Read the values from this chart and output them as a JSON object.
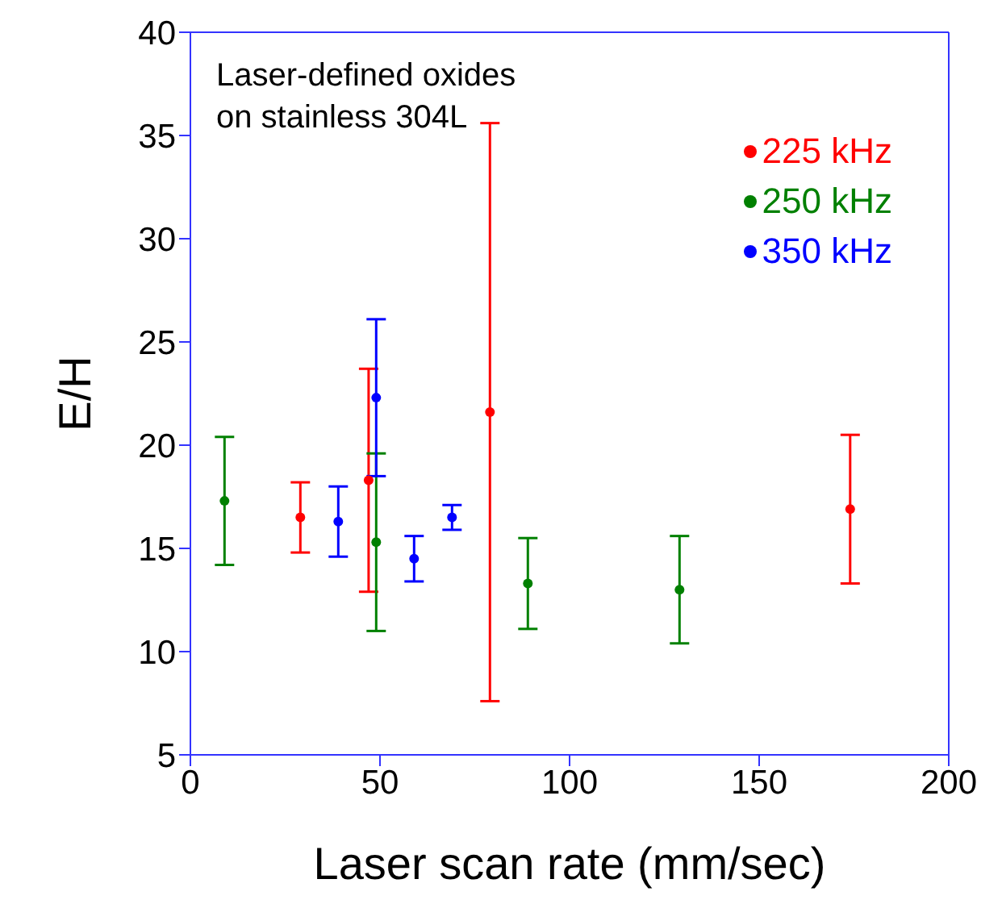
{
  "chart_data": {
    "type": "scatter",
    "xlabel": "Laser scan rate (mm/sec)",
    "ylabel": "E/H",
    "xlim": [
      0,
      200
    ],
    "xticks": [
      0,
      50,
      100,
      150,
      200
    ],
    "ylim": [
      5,
      40
    ],
    "yticks": [
      5,
      10,
      15,
      20,
      25,
      30,
      35,
      40
    ],
    "legend": "top right",
    "marker": "circle",
    "annotations": [
      "Laser-defined oxides\non stainless 304L"
    ],
    "series": [
      {
        "name": "225 kHz",
        "color": "#ff0000",
        "x": [
          29,
          47,
          79,
          174
        ],
        "values": [
          16.5,
          18.3,
          21.6,
          16.9
        ],
        "errors": [
          1.7,
          5.4,
          14,
          3.6
        ]
      },
      {
        "name": "250 kHz",
        "color": "#008000",
        "x": [
          9,
          49,
          89,
          129
        ],
        "values": [
          17.3,
          15.3,
          13.3,
          13.0
        ],
        "errors": [
          3.1,
          4.3,
          2.2,
          2.6
        ]
      },
      {
        "name": "350 kHz",
        "color": "#0000ff",
        "x": [
          39,
          49,
          59,
          69
        ],
        "values": [
          16.3,
          22.3,
          14.5,
          16.5
        ],
        "errors": [
          1.7,
          3.8,
          1.1,
          0.6
        ]
      }
    ]
  }
}
